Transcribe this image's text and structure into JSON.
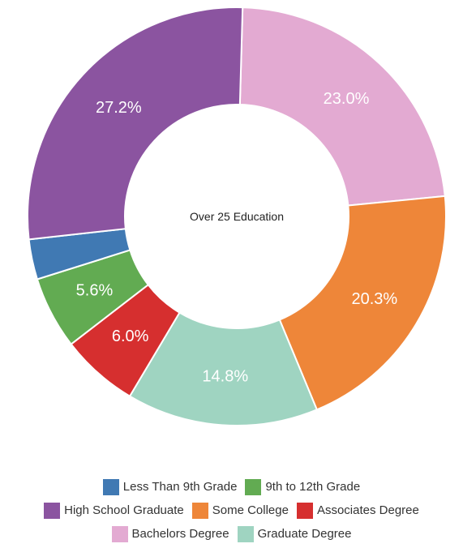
{
  "chart_data": {
    "type": "pie",
    "title": "Over 25 Education",
    "categories": [
      "Less Than 9th Grade",
      "9th to 12th Grade",
      "High School Graduate",
      "Some College",
      "Associates Degree",
      "Bachelors Degree",
      "Graduate Degree"
    ],
    "values": [
      3.1,
      5.6,
      27.2,
      20.3,
      6.0,
      23.0,
      14.8
    ],
    "value_labels": [
      "",
      "5.6%",
      "27.2%",
      "20.3%",
      "6.0%",
      "23.0%",
      "14.8%"
    ],
    "colors": [
      "#4079b3",
      "#62ab52",
      "#8b54a0",
      "#ee8639",
      "#d62f2f",
      "#e3aad2",
      "#9fd4c1"
    ],
    "legend_position": "bottom",
    "legend_rows": [
      [
        0,
        1
      ],
      [
        2,
        3,
        4
      ],
      [
        5,
        6
      ]
    ]
  }
}
